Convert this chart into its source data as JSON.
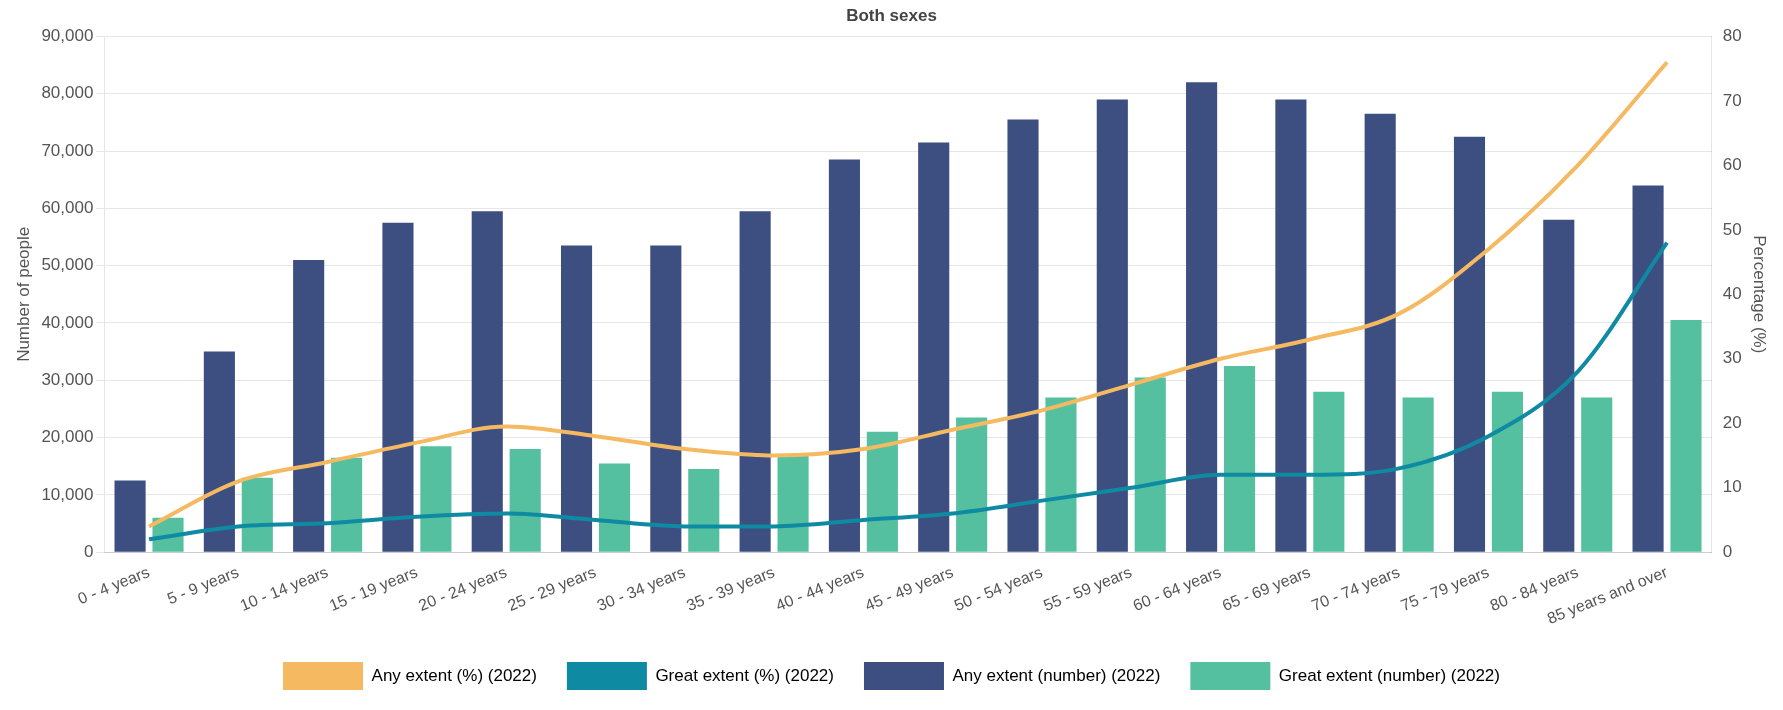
{
  "chart_data": {
    "type": "bar",
    "title": "Both sexes",
    "ylabel": "Number of people",
    "y2label": "Percentage (%)",
    "categories": [
      "0 - 4 years",
      "5 - 9 years",
      "10 - 14 years",
      "15 - 19 years",
      "20 - 24 years",
      "25 - 29 years",
      "30 - 34 years",
      "35 - 39 years",
      "40 - 44 years",
      "45 - 49 years",
      "50 - 54 years",
      "55 - 59 years",
      "60 - 64 years",
      "65 - 69 years",
      "70 - 74 years",
      "75 - 79 years",
      "80 - 84 years",
      "85 years and over"
    ],
    "series": [
      {
        "name": "Any extent (%) (2022)",
        "type": "line",
        "axis": "y2",
        "color": "#f5b961",
        "values": [
          4,
          11,
          14,
          17,
          19.5,
          18,
          16,
          15,
          16,
          19,
          22,
          26,
          30,
          33,
          37,
          47,
          60,
          76
        ]
      },
      {
        "name": "Great extent (%) (2022)",
        "type": "line",
        "axis": "y2",
        "color": "#0e8aa3",
        "values": [
          2,
          4,
          4.5,
          5.5,
          6,
          5,
          4,
          4,
          5,
          6,
          8,
          10,
          12,
          12,
          13,
          18,
          28,
          48
        ]
      },
      {
        "name": "Any extent (number) (2022)",
        "color": "#3d4f80",
        "values": [
          12500,
          35000,
          51000,
          57500,
          59500,
          53500,
          53500,
          59500,
          68500,
          71500,
          75500,
          79000,
          82000,
          79000,
          76500,
          72500,
          58000,
          64000
        ]
      },
      {
        "name": "Great extent (number) (2022)",
        "color": "#55c0a0",
        "values": [
          6000,
          13000,
          16500,
          18500,
          18000,
          15500,
          14500,
          17000,
          21000,
          23500,
          27000,
          30500,
          32500,
          28000,
          27000,
          28000,
          27000,
          40500
        ]
      }
    ],
    "ylim": [
      0,
      90000
    ],
    "yticks": [
      {
        "value": 0,
        "label": "0"
      },
      {
        "value": 10000,
        "label": "10,000"
      },
      {
        "value": 20000,
        "label": "20,000"
      },
      {
        "value": 30000,
        "label": "30,000"
      },
      {
        "value": 40000,
        "label": "40,000"
      },
      {
        "value": 50000,
        "label": "50,000"
      },
      {
        "value": 60000,
        "label": "60,000"
      },
      {
        "value": 70000,
        "label": "70,000"
      },
      {
        "value": 80000,
        "label": "80,000"
      },
      {
        "value": 90000,
        "label": "90,000"
      }
    ],
    "y2lim": [
      0,
      80
    ],
    "y2ticks": [
      0,
      10,
      20,
      30,
      40,
      50,
      60,
      70,
      80
    ],
    "grid": "y",
    "legend": "bottom",
    "marker": "none",
    "line_style": "solid"
  }
}
